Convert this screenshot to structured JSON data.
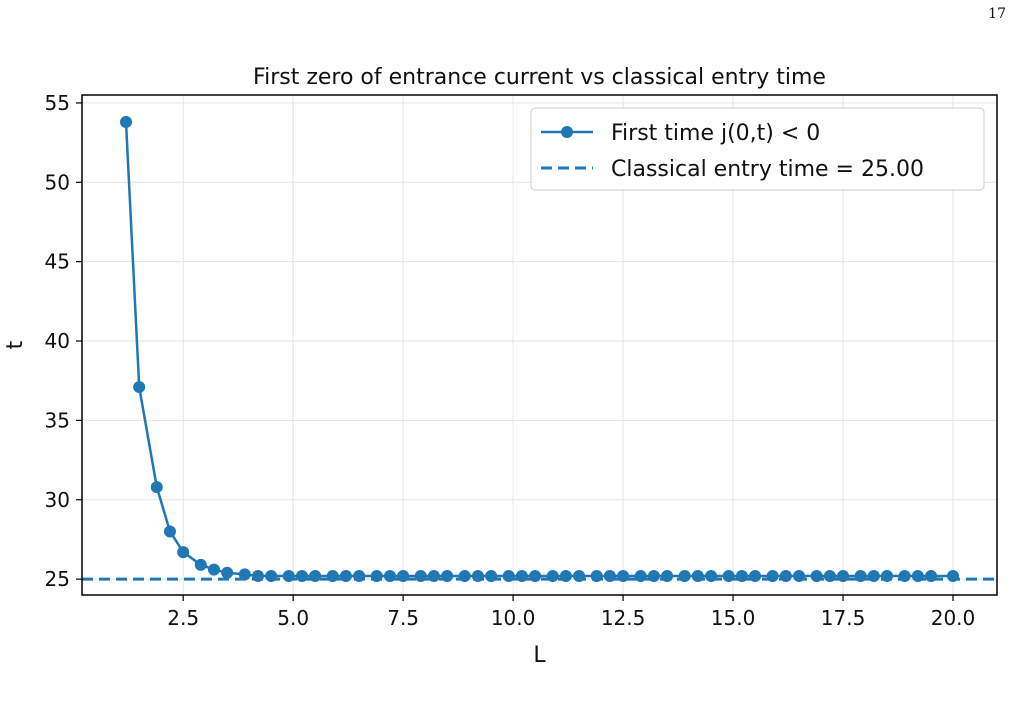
{
  "page_number": "17",
  "chart_data": {
    "type": "line",
    "title": "First zero of entrance current vs classical entry time",
    "xlabel": "L",
    "ylabel": "t",
    "xlim": [
      0.2,
      21.0
    ],
    "ylim": [
      24.0,
      55.5
    ],
    "xticks": [
      2.5,
      5.0,
      7.5,
      10.0,
      12.5,
      15.0,
      17.5,
      20.0
    ],
    "xtick_labels": [
      "2.5",
      "5.0",
      "7.5",
      "10.0",
      "12.5",
      "15.0",
      "17.5",
      "20.0"
    ],
    "yticks": [
      25,
      30,
      35,
      40,
      45,
      50,
      55
    ],
    "ytick_labels": [
      "25",
      "30",
      "35",
      "40",
      "45",
      "50",
      "55"
    ],
    "grid": true,
    "legend_position": "top-right",
    "color": "#1f77b4",
    "series": [
      {
        "name": "First time j(0,t) < 0",
        "style": "solid-with-markers",
        "x": [
          1.2,
          1.5,
          1.9,
          2.2,
          2.5,
          2.9,
          3.2,
          3.5,
          3.9,
          4.2,
          4.5,
          4.9,
          5.2,
          5.5,
          5.9,
          6.2,
          6.5,
          6.9,
          7.2,
          7.5,
          7.9,
          8.2,
          8.5,
          8.9,
          9.2,
          9.5,
          9.9,
          10.2,
          10.5,
          10.9,
          11.2,
          11.5,
          11.9,
          12.2,
          12.5,
          12.9,
          13.2,
          13.5,
          13.9,
          14.2,
          14.5,
          14.9,
          15.2,
          15.5,
          15.9,
          16.2,
          16.5,
          16.9,
          17.2,
          17.5,
          17.9,
          18.2,
          18.5,
          18.9,
          19.2,
          19.5,
          20.0
        ],
        "y": [
          53.8,
          37.1,
          30.8,
          28.0,
          26.7,
          25.9,
          25.6,
          25.4,
          25.3,
          25.2,
          25.2,
          25.2,
          25.2,
          25.2,
          25.2,
          25.2,
          25.2,
          25.2,
          25.2,
          25.2,
          25.2,
          25.2,
          25.2,
          25.2,
          25.2,
          25.2,
          25.2,
          25.2,
          25.2,
          25.2,
          25.2,
          25.2,
          25.2,
          25.2,
          25.2,
          25.2,
          25.2,
          25.2,
          25.2,
          25.2,
          25.2,
          25.2,
          25.2,
          25.2,
          25.2,
          25.2,
          25.2,
          25.2,
          25.2,
          25.2,
          25.2,
          25.2,
          25.2,
          25.2,
          25.2,
          25.2,
          25.2
        ]
      },
      {
        "name": "Classical entry time = 25.00",
        "style": "dashed-horizontal",
        "y": 25.0
      }
    ]
  }
}
